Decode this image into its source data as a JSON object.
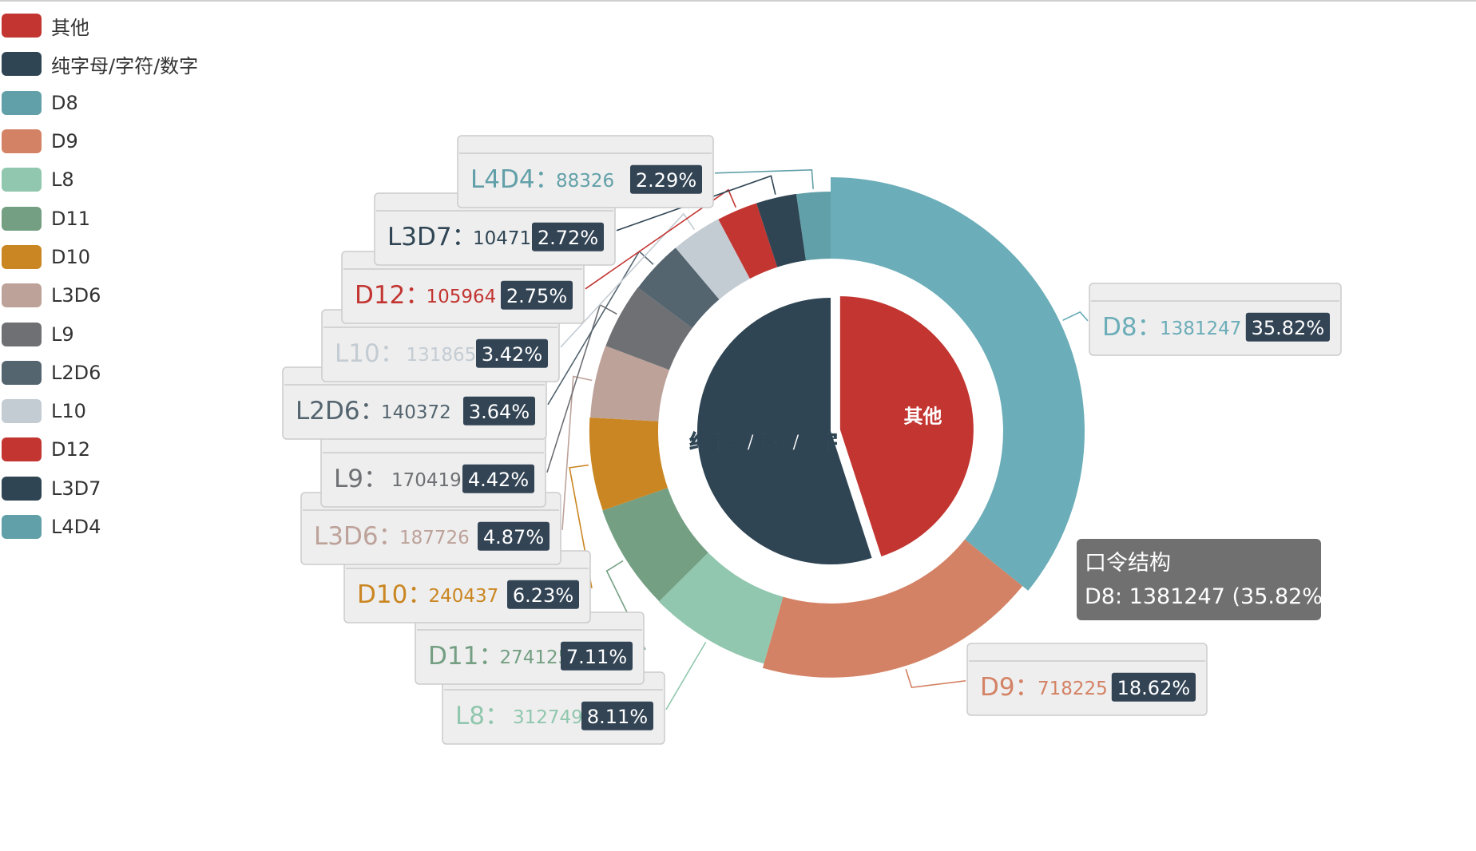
{
  "chart_data": {
    "type": "pie",
    "title": "",
    "tooltip": {
      "title": "口令结构",
      "text": "D8: 1381247 (35.82%)"
    },
    "inner": {
      "slices": [
        {
          "name": "其他",
          "value": 45,
          "color": "#c23531"
        },
        {
          "name": "纯字母/字符/数字",
          "value": 55,
          "color": "#2f4554"
        }
      ]
    },
    "outer": {
      "slices": [
        {
          "name": "D8",
          "value": 1381247,
          "percent": "35.82%",
          "color": "#6badb8"
        },
        {
          "name": "D9",
          "value": 718225,
          "percent": "18.62%",
          "color": "#d48265"
        },
        {
          "name": "L8",
          "value": 312749,
          "percent": "8.11%",
          "color": "#91c7ae"
        },
        {
          "name": "D11",
          "value": 274125,
          "percent": "7.11%",
          "color": "#749f83"
        },
        {
          "name": "D10",
          "value": 240437,
          "percent": "6.23%",
          "color": "#ca8622"
        },
        {
          "name": "L3D6",
          "value": 187726,
          "percent": "4.87%",
          "color": "#bda29a"
        },
        {
          "name": "L9",
          "value": 170419,
          "percent": "4.42%",
          "color": "#6e7074"
        },
        {
          "name": "L2D6",
          "value": 140372,
          "percent": "3.64%",
          "color": "#546570"
        },
        {
          "name": "L10",
          "value": 131865,
          "percent": "3.42%",
          "color": "#c4ccd3"
        },
        {
          "name": "D12",
          "value": 105964,
          "percent": "2.75%",
          "color": "#c23531"
        },
        {
          "name": "L3D7",
          "value": 104717,
          "percent": "2.72%",
          "color": "#2f4554"
        },
        {
          "name": "L4D4",
          "value": 88326,
          "percent": "2.29%",
          "color": "#61a0a8"
        }
      ]
    },
    "legend": {
      "position": "top-left",
      "items": [
        {
          "name": "其他",
          "color": "#c23531"
        },
        {
          "name": "纯字母/字符/数字",
          "color": "#2f4554"
        },
        {
          "name": "D8",
          "color": "#61a0a8"
        },
        {
          "name": "D9",
          "color": "#d48265"
        },
        {
          "name": "L8",
          "color": "#91c7ae"
        },
        {
          "name": "D11",
          "color": "#749f83"
        },
        {
          "name": "D10",
          "color": "#ca8622"
        },
        {
          "name": "L3D6",
          "color": "#bda29a"
        },
        {
          "name": "L9",
          "color": "#6e7074"
        },
        {
          "name": "L2D6",
          "color": "#546570"
        },
        {
          "name": "L10",
          "color": "#c4ccd3"
        },
        {
          "name": "D12",
          "color": "#c23531"
        },
        {
          "name": "L3D7",
          "color": "#2f4554"
        },
        {
          "name": "L4D4",
          "color": "#61a0a8"
        }
      ]
    }
  }
}
